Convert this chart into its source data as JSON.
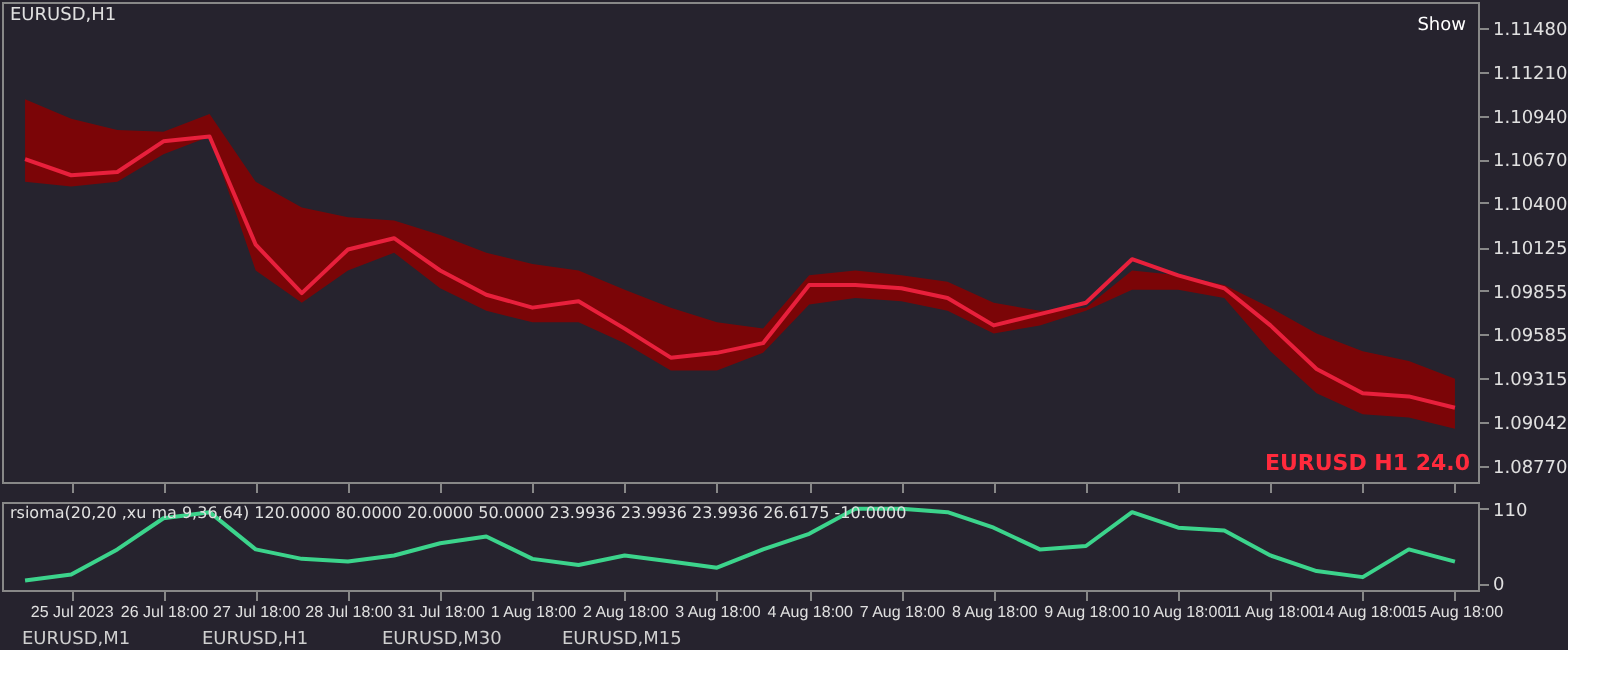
{
  "chart_data": [
    {
      "type": "line",
      "title": "EURUSD,H1",
      "categories": [
        null,
        null,
        null,
        null,
        null,
        null,
        null,
        null,
        null,
        null,
        null,
        null,
        null,
        null,
        null,
        null,
        null,
        null,
        null,
        null,
        null,
        null,
        null,
        null,
        null,
        null,
        null,
        null,
        null,
        null,
        null,
        null
      ],
      "series": [
        {
          "color": "#e8203c",
          "values": [
            1.1067,
            1.1057,
            1.1059,
            1.1078,
            1.1081,
            1.1014,
            1.0984,
            1.1011,
            1.1018,
            1.0998,
            1.0983,
            1.0975,
            1.0979,
            1.0962,
            1.0944,
            1.0947,
            1.0953,
            1.0989,
            1.0989,
            1.0987,
            1.0981,
            1.0964,
            1.0971,
            1.0978,
            1.1005,
            1.0995,
            1.0987,
            1.0964,
            1.0937,
            1.0922,
            1.092,
            1.0913
          ],
          "lower": [
            1.1053,
            1.105,
            1.1053,
            1.107,
            1.1081,
            1.0998,
            1.0978,
            1.0998,
            1.1009,
            1.0987,
            1.0973,
            1.0966,
            1.0966,
            1.0953,
            1.0936,
            1.0936,
            1.0947,
            1.0977,
            1.0981,
            1.0979,
            1.0973,
            1.0959,
            1.0964,
            1.0973,
            1.0986,
            1.0986,
            1.0981,
            1.0948,
            1.0922,
            1.0909,
            1.0907,
            1.09
          ],
          "upper": [
            1.1104,
            1.1092,
            1.1085,
            1.1084,
            1.1095,
            1.1053,
            1.1037,
            1.1031,
            1.1029,
            1.102,
            1.1009,
            1.1002,
            1.0998,
            1.0986,
            1.0975,
            1.0966,
            1.0962,
            1.0995,
            1.0998,
            1.0995,
            1.0991,
            1.0978,
            1.0973,
            1.0975,
            1.0998,
            1.0995,
            1.0989,
            1.0975,
            1.0959,
            1.0948,
            1.0942,
            1.0931
          ]
        }
      ],
      "ylim": [
        1.0867,
        1.11643
      ],
      "yticks": [
        {
          "value": 1.1148,
          "label": "1.11480"
        },
        {
          "value": 1.1121,
          "label": "1.11210"
        },
        {
          "value": 1.1094,
          "label": "1.10940"
        },
        {
          "value": 1.1067,
          "label": "1.10670"
        },
        {
          "value": 1.104,
          "label": "1.10400"
        },
        {
          "value": 1.10125,
          "label": "1.10125"
        },
        {
          "value": 1.09855,
          "label": "1.09855"
        },
        {
          "value": 1.09585,
          "label": "1.09585"
        },
        {
          "value": 1.09315,
          "label": "1.09315"
        },
        {
          "value": 1.09042,
          "label": "1.09042"
        },
        {
          "value": 1.0877,
          "label": "1.08770"
        }
      ],
      "tick_labels": "y",
      "annotations": [
        "EURUSD H1  24.0",
        "Show"
      ]
    },
    {
      "type": "line",
      "title": "rsioma(20,20 ,xu ma 9,36,64) 120.0000 80.0000 20.0000 50.0000 23.9936 23.9936 23.9936 26.6175 -10.0000",
      "categories": [
        null,
        "25 Jul 2023",
        null,
        "26 Jul 18:00",
        null,
        "27 Jul 18:00",
        null,
        "28 Jul 18:00",
        null,
        "31 Jul 18:00",
        null,
        "1 Aug 18:00",
        null,
        "2 Aug 18:00",
        null,
        "3 Aug 18:00",
        null,
        "4 Aug 18:00",
        null,
        "7 Aug 18:00",
        null,
        "8 Aug 18:00",
        null,
        "9 Aug 18:00",
        null,
        "10 Aug 18:00",
        null,
        "11 Aug 18:00",
        null,
        "14 Aug 18:00",
        null,
        "15 Aug 18:00"
      ],
      "series": [
        {
          "color": "#3cd48c",
          "values": [
            4,
            13,
            50,
            96,
            105,
            50,
            36,
            32,
            41,
            59,
            69,
            36,
            27,
            41,
            32,
            23,
            50,
            73,
            110,
            110,
            105,
            82,
            50,
            55,
            105,
            82,
            78,
            41,
            18,
            9,
            50,
            32
          ]
        }
      ],
      "ylim": [
        -10,
        120
      ],
      "yticks": [
        0,
        110
      ],
      "annotations": [
        "EURUSD,M1",
        "EURUSD,H1",
        "EURUSD,M30",
        "EURUSD,M15"
      ]
    }
  ]
}
